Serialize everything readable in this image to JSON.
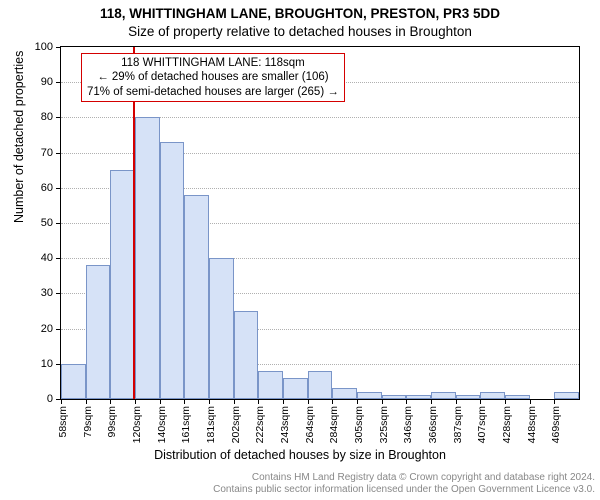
{
  "title": "118, WHITTINGHAM LANE, BROUGHTON, PRESTON, PR3 5DD",
  "subtitle": "Size of property relative to detached houses in Broughton",
  "chart": {
    "type": "histogram",
    "ylabel": "Number of detached properties",
    "xlabel": "Distribution of detached houses by size in Broughton",
    "ylim": [
      0,
      100
    ],
    "ytick_step": 10,
    "yticks": [
      0,
      10,
      20,
      30,
      40,
      50,
      60,
      70,
      80,
      90,
      100
    ],
    "bar_fill": "#d6e2f7",
    "bar_border": "#7a95c8",
    "background_color": "#ffffff",
    "grid_color": "#b0b0b0",
    "plot_border": "#000000",
    "categories": [
      "58sqm",
      "79sqm",
      "99sqm",
      "120sqm",
      "140sqm",
      "161sqm",
      "181sqm",
      "202sqm",
      "222sqm",
      "243sqm",
      "264sqm",
      "284sqm",
      "305sqm",
      "325sqm",
      "346sqm",
      "366sqm",
      "387sqm",
      "407sqm",
      "428sqm",
      "448sqm",
      "469sqm"
    ],
    "values": [
      10,
      38,
      65,
      80,
      73,
      58,
      40,
      25,
      8,
      6,
      8,
      3,
      2,
      1,
      1,
      2,
      1,
      2,
      1,
      0,
      2
    ],
    "marker_value": 118,
    "marker_x_start": 58,
    "marker_bin_width": 20.5,
    "marker_color": "#d40000",
    "tick_fontsize": 11,
    "label_fontsize": 12.5,
    "title_fontsize": 13.5
  },
  "info_box": {
    "line1": "118 WHITTINGHAM LANE: 118sqm",
    "line2": "← 29% of detached houses are smaller (106)",
    "line3": "71% of semi-detached houses are larger (265) →",
    "border_color": "#d40000",
    "bg": "#ffffff",
    "fontsize": 11.5
  },
  "footer": {
    "line1": "Contains HM Land Registry data © Crown copyright and database right 2024.",
    "line2": "Contains public sector information licensed under the Open Government Licence v3.0.",
    "color": "#888888",
    "fontsize": 10
  }
}
